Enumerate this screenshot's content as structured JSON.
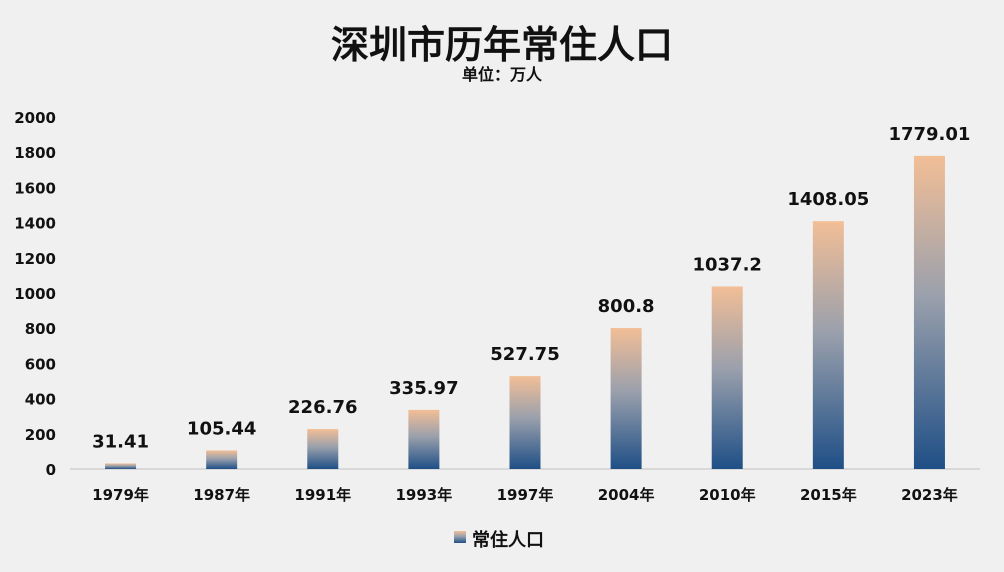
{
  "chart_data": {
    "type": "bar",
    "title": "深圳市历年常住人口",
    "subtitle": "单位：万人",
    "categories": [
      "1979年",
      "1987年",
      "1991年",
      "1993年",
      "1997年",
      "2004年",
      "2010年",
      "2015年",
      "2023年"
    ],
    "series": [
      {
        "name": "常住人口",
        "values": [
          31.41,
          105.44,
          226.76,
          335.97,
          527.75,
          800.8,
          1037.2,
          1408.05,
          1779.01
        ],
        "labels": [
          "31.41",
          "105.44",
          "226.76",
          "335.97",
          "527.75",
          "800.8",
          "1037.2",
          "1408.05",
          "1779.01"
        ]
      }
    ],
    "ylim": [
      0,
      2000
    ],
    "yticks": [
      "0",
      "200",
      "400",
      "600",
      "800",
      "1000",
      "1200",
      "1400",
      "1600",
      "1800",
      "2000"
    ],
    "ytick_values": [
      0,
      200,
      400,
      600,
      800,
      1000,
      1200,
      1400,
      1600,
      1800,
      2000
    ],
    "grid": false,
    "legend_position": "bottom",
    "colors": {
      "bar_top": "#f2be96",
      "bar_bottom": "#1f4f86",
      "text": "#111111",
      "background": "#f0f0f0",
      "axis": "#bfbfbf"
    }
  }
}
